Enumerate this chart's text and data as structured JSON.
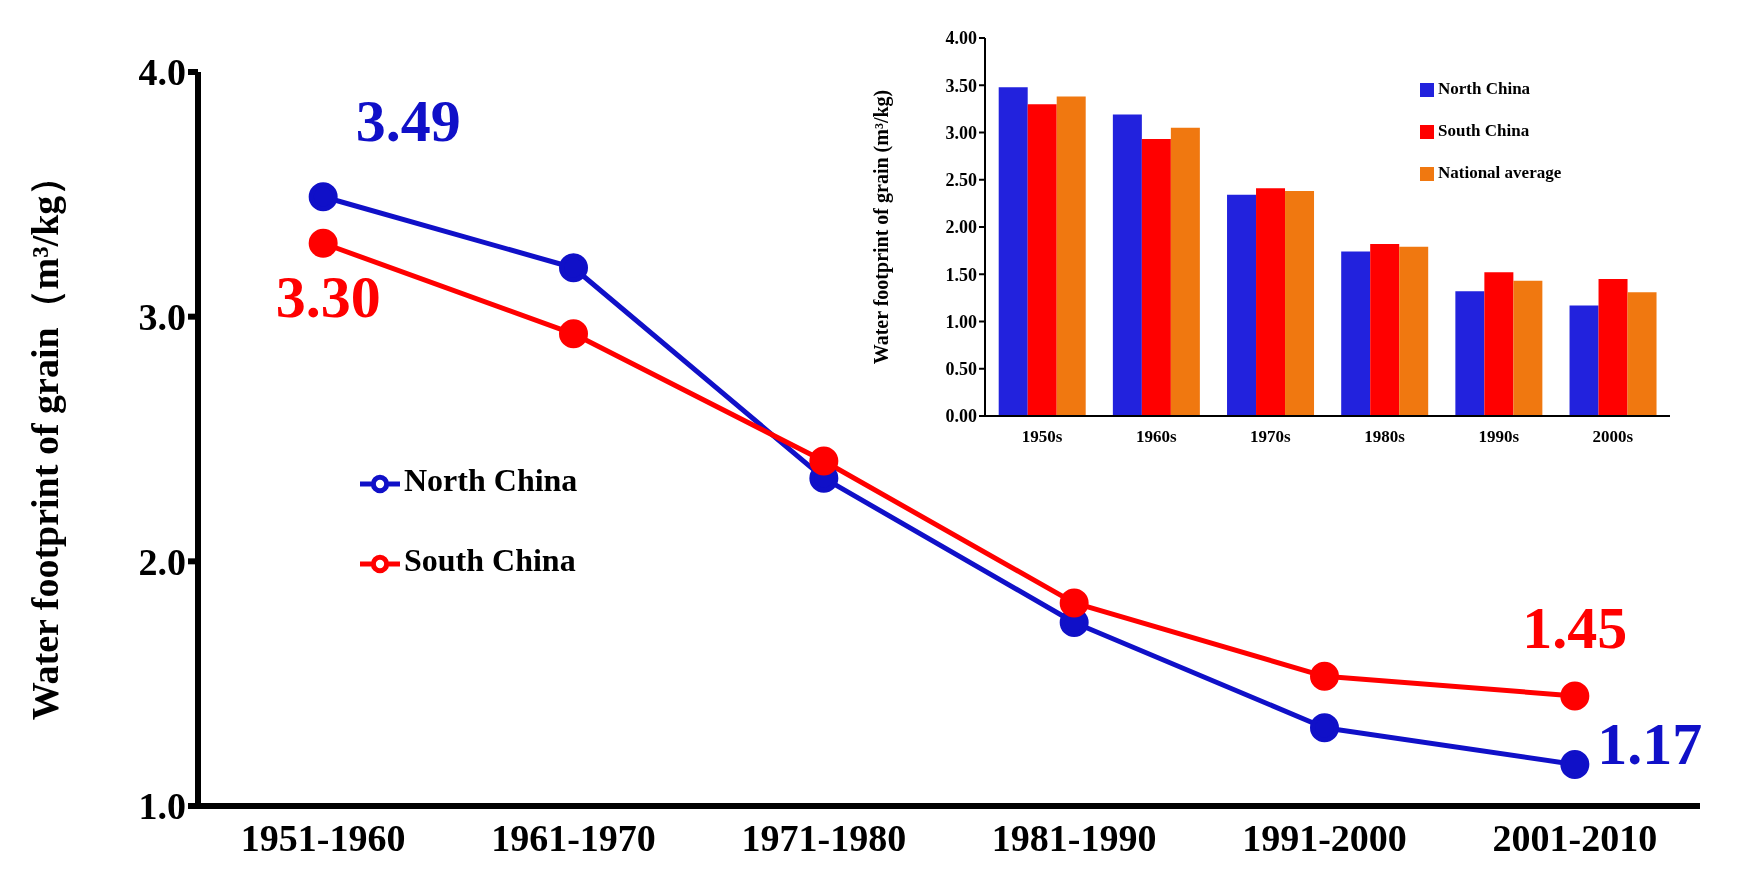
{
  "chart_data": [
    {
      "type": "line",
      "categories": [
        "1951-1960",
        "1961-1970",
        "1971-1980",
        "1981-1990",
        "1991-2000",
        "2001-2010"
      ],
      "ylabel": "Water footprint of grain（m³/kg）",
      "ylim": [
        1,
        4
      ],
      "yticks": [
        {
          "value": 1,
          "label": "1.0"
        },
        {
          "value": 2,
          "label": "2.0"
        },
        {
          "value": 3,
          "label": "3.0"
        },
        {
          "value": 4,
          "label": "4.0"
        }
      ],
      "grid": false,
      "legend": "left",
      "marker": "circle",
      "line_style": "solid",
      "series": [
        {
          "name": "North China",
          "color": "#1010c8",
          "values": [
            3.49,
            3.2,
            2.34,
            1.75,
            1.32,
            1.17
          ],
          "value_labels": [
            "3.49",
            null,
            null,
            null,
            null,
            "1.17"
          ]
        },
        {
          "name": "South China",
          "color": "#ff0000",
          "values": [
            3.3,
            2.93,
            2.41,
            1.83,
            1.53,
            1.45
          ],
          "value_labels": [
            "3.30",
            null,
            null,
            null,
            null,
            "1.45"
          ]
        }
      ]
    },
    {
      "type": "bar",
      "categories": [
        "1950s",
        "1960s",
        "1970s",
        "1980s",
        "1990s",
        "2000s"
      ],
      "ylabel": "Water footprint of grain (m³/kg)",
      "ylim": [
        0,
        4
      ],
      "yticks": [
        {
          "value": 0,
          "label": "0.00"
        },
        {
          "value": 0.5,
          "label": "0.50"
        },
        {
          "value": 1,
          "label": "1.00"
        },
        {
          "value": 1.5,
          "label": "1.50"
        },
        {
          "value": 2,
          "label": "2.00"
        },
        {
          "value": 2.5,
          "label": "2.50"
        },
        {
          "value": 3,
          "label": "3.00"
        },
        {
          "value": 3.5,
          "label": "3.50"
        },
        {
          "value": 4,
          "label": "4.00"
        }
      ],
      "grid": false,
      "legend": "top right",
      "series": [
        {
          "name": "North China",
          "color": "#2222dd",
          "values": [
            3.48,
            3.19,
            2.34,
            1.74,
            1.32,
            1.17
          ]
        },
        {
          "name": "South China",
          "color": "#ff0000",
          "values": [
            3.3,
            2.93,
            2.41,
            1.82,
            1.52,
            1.45
          ]
        },
        {
          "name": "National average",
          "color": "#f07810",
          "values": [
            3.38,
            3.05,
            2.38,
            1.79,
            1.43,
            1.31
          ]
        }
      ]
    }
  ]
}
